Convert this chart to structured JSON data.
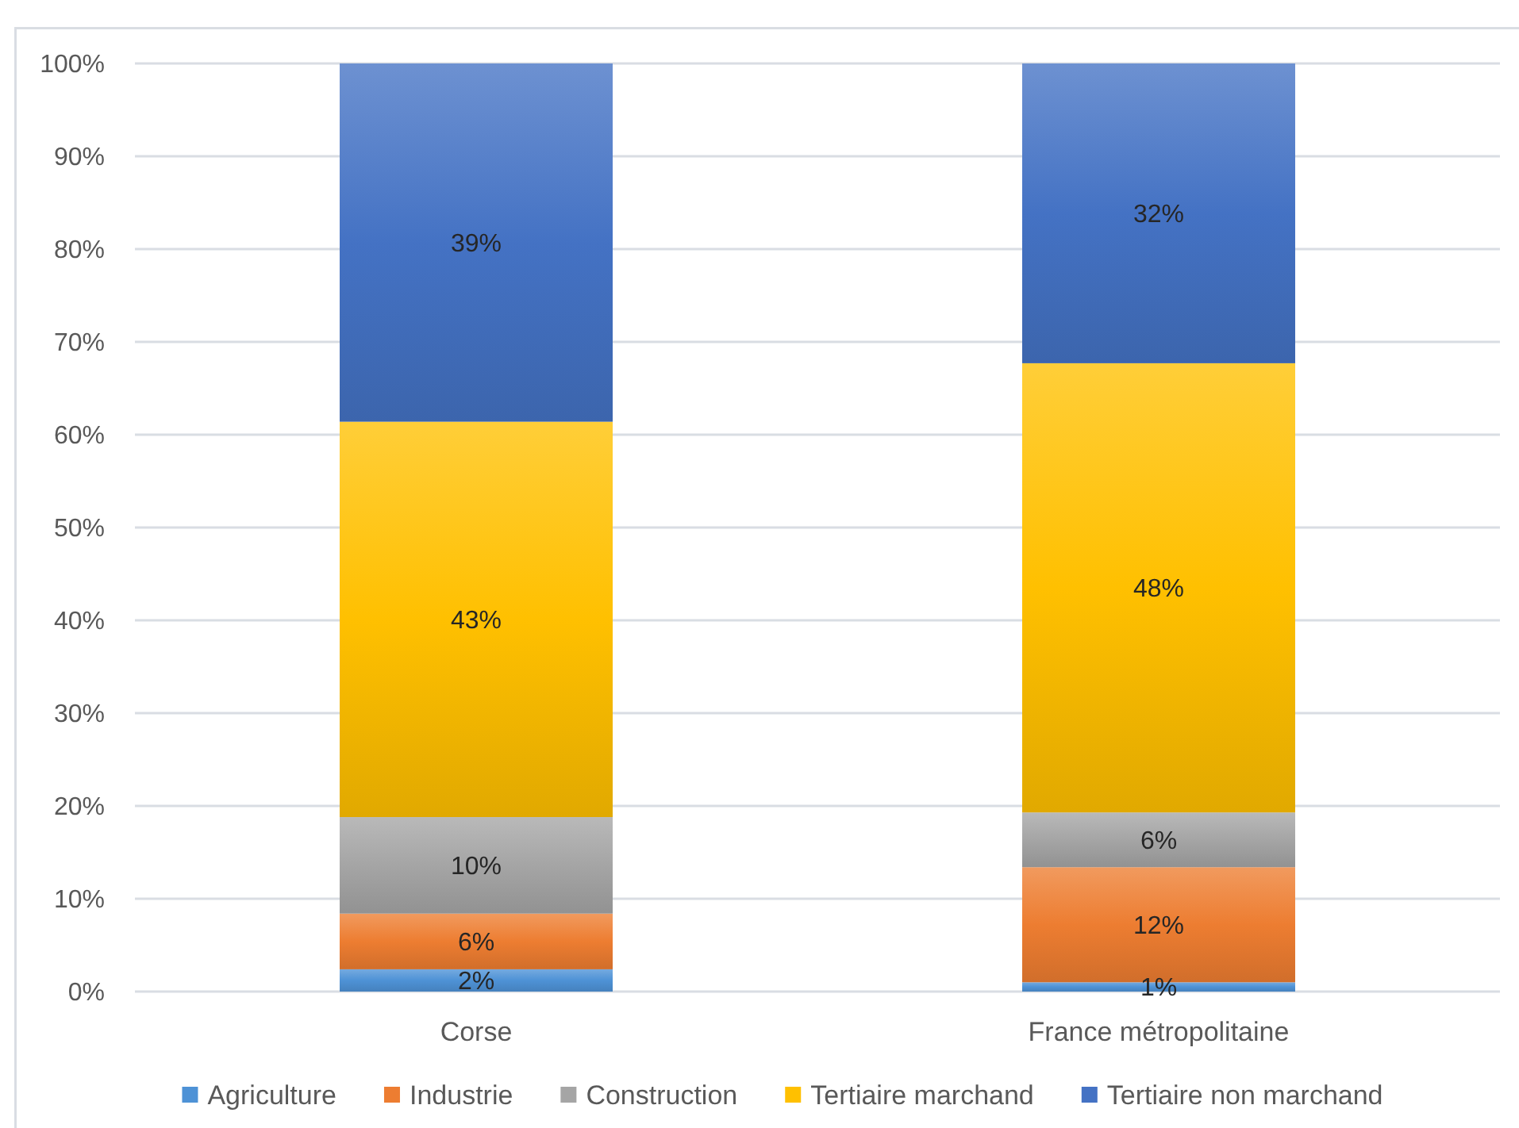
{
  "chart_data": {
    "type": "bar",
    "stacked": true,
    "categories": [
      "Corse",
      "France métropolitaine"
    ],
    "series": [
      {
        "name": "Agriculture",
        "color": "#4e92d6",
        "values": [
          2.4,
          1.0
        ],
        "value_labels": [
          "2%",
          "1%"
        ]
      },
      {
        "name": "Industrie",
        "color": "#ed7d31",
        "values": [
          6.0,
          12.4
        ],
        "value_labels": [
          "6%",
          "12%"
        ]
      },
      {
        "name": "Construction",
        "color": "#a5a5a5",
        "values": [
          10.4,
          5.9
        ],
        "value_labels": [
          "10%",
          "6%"
        ]
      },
      {
        "name": "Tertiaire marchand",
        "color": "#ffc000",
        "values": [
          42.6,
          48.4
        ],
        "value_labels": [
          "43%",
          "48%"
        ]
      },
      {
        "name": "Tertiaire non marchand",
        "color": "#4472c4",
        "values": [
          38.6,
          32.3
        ],
        "value_labels": [
          "39%",
          "32%"
        ]
      }
    ],
    "ylim": [
      0,
      100
    ],
    "yticks": [
      {
        "value": 0,
        "label": "0%"
      },
      {
        "value": 10,
        "label": "10%"
      },
      {
        "value": 20,
        "label": "20%"
      },
      {
        "value": 30,
        "label": "30%"
      },
      {
        "value": 40,
        "label": "40%"
      },
      {
        "value": 50,
        "label": "50%"
      },
      {
        "value": 60,
        "label": "60%"
      },
      {
        "value": 70,
        "label": "70%"
      },
      {
        "value": 80,
        "label": "80%"
      },
      {
        "value": 90,
        "label": "90%"
      },
      {
        "value": 100,
        "label": "100%"
      }
    ],
    "grid": "y",
    "legend": "bottom"
  }
}
